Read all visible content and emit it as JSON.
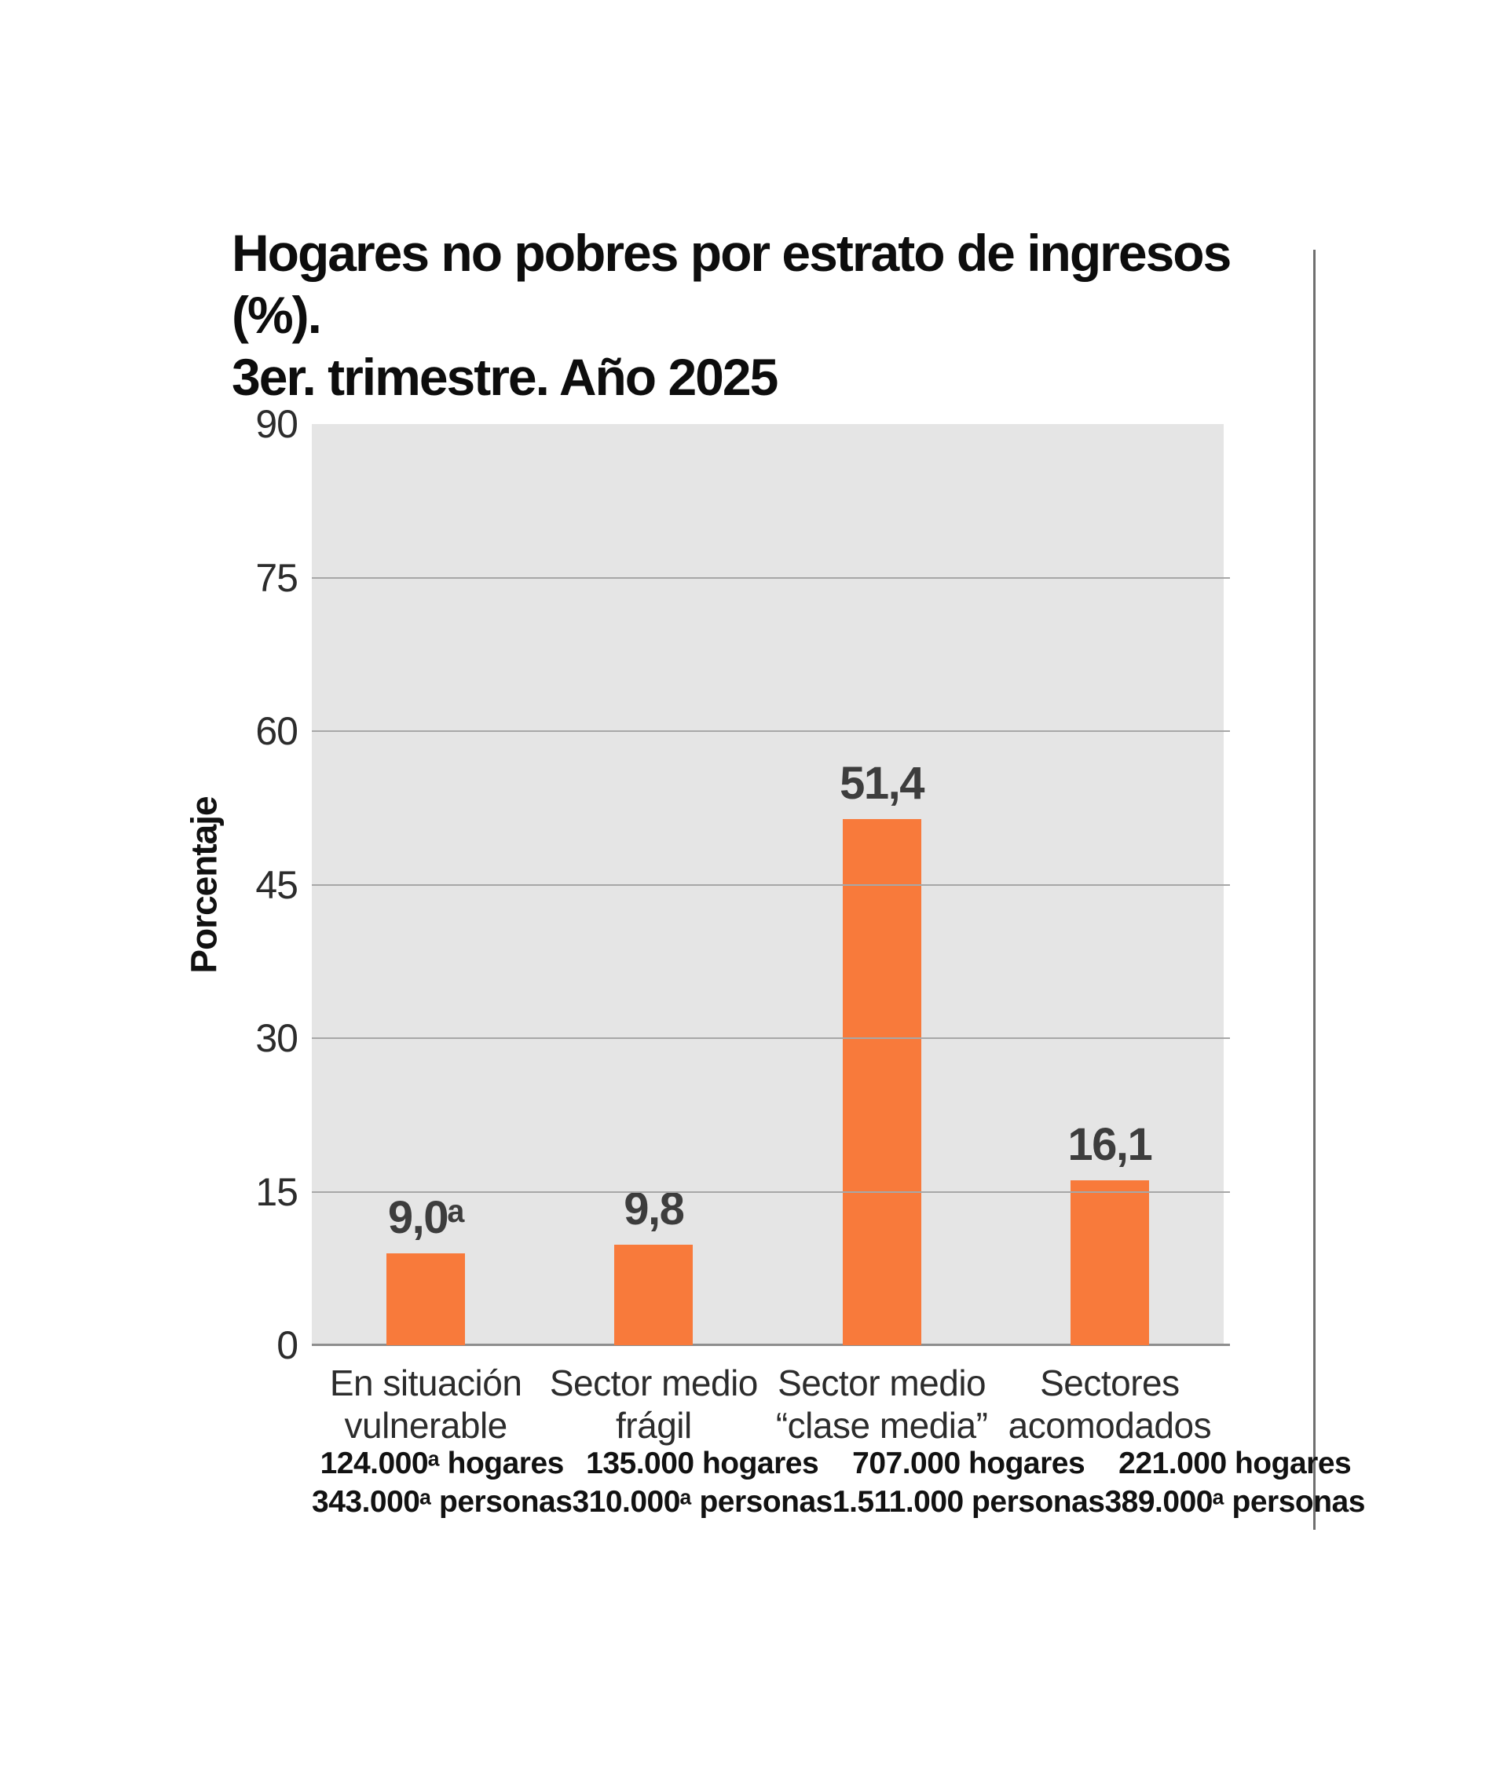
{
  "title": {
    "line1": "Hogares no pobres por estrato de ingresos (%).",
    "line2": "3er. trimestre. Año 2025"
  },
  "chart_data": {
    "type": "bar",
    "title": "Hogares no pobres por estrato de ingresos (%). 3er. trimestre. Año 2025",
    "xlabel": "",
    "ylabel": "Porcentaje",
    "ylim": [
      0,
      90
    ],
    "yticks": [
      0,
      15,
      30,
      45,
      60,
      75,
      90
    ],
    "grid": true,
    "legend": "none",
    "plot_background": "#e5e5e5",
    "bar_color": "#f87a3b",
    "gridline_color": "#a7a7a7",
    "categories": [
      "En situación vulnerable",
      "Sector medio frágil",
      "Sector medio “clase media”",
      "Sectores acomodados"
    ],
    "category_lines": [
      [
        "En situación",
        "vulnerable"
      ],
      [
        "Sector medio",
        "frágil"
      ],
      [
        "Sector medio",
        "“clase media”"
      ],
      [
        "Sectores",
        "acomodados"
      ]
    ],
    "values": [
      9.0,
      9.8,
      51.4,
      16.1
    ],
    "value_labels": [
      "9,0ᵃ",
      "9,8",
      "51,4",
      "16,1"
    ],
    "footnotes": [
      [
        "124.000ᵃ hogares",
        "343.000ᵃ personas"
      ],
      [
        "135.000 hogares",
        "310.000ᵃ personas"
      ],
      [
        "707.000 hogares",
        "1.511.000 personas"
      ],
      [
        "221.000 hogares",
        "389.000ᵃ personas"
      ]
    ]
  }
}
